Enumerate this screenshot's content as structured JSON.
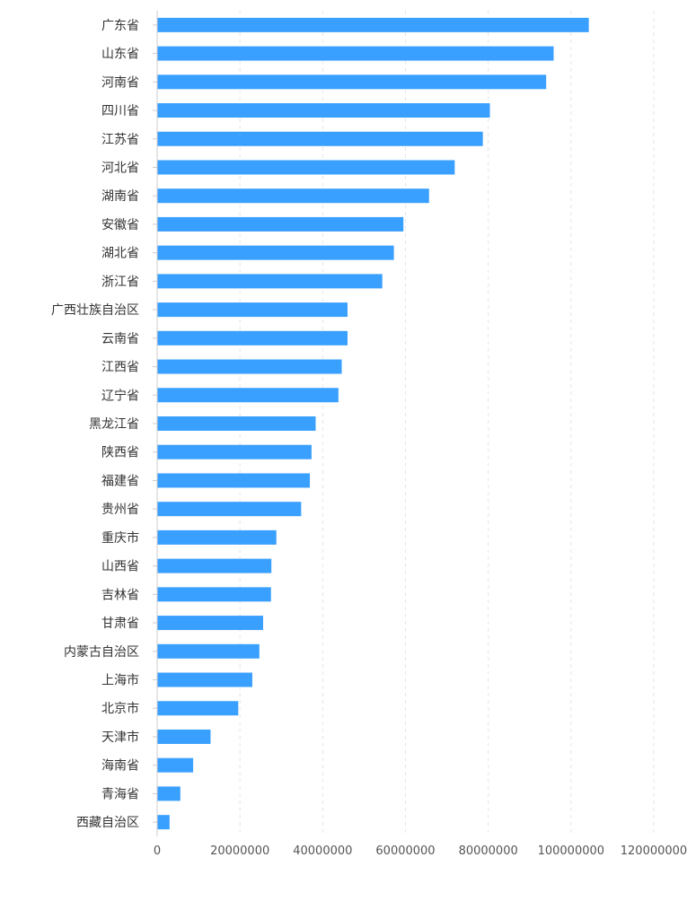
{
  "chart_data": {
    "type": "bar",
    "orientation": "horizontal",
    "title": "",
    "xlabel": "",
    "ylabel": "",
    "xlim": [
      0,
      120000000
    ],
    "x_ticks": [
      0,
      20000000,
      40000000,
      60000000,
      80000000,
      100000000,
      120000000
    ],
    "x_tick_labels": [
      "0",
      "20000000",
      "40000000",
      "60000000",
      "80000000",
      "100000000",
      "120000000"
    ],
    "grid": "vertical dashed",
    "legend": "none",
    "bar_color": "#3aa0ff",
    "categories": [
      "广东省",
      "山东省",
      "河南省",
      "四川省",
      "江苏省",
      "河北省",
      "湖南省",
      "安徽省",
      "湖北省",
      "浙江省",
      "广西壮族自治区",
      "云南省",
      "江西省",
      "辽宁省",
      "黑龙江省",
      "陕西省",
      "福建省",
      "贵州省",
      "重庆市",
      "山西省",
      "吉林省",
      "甘肃省",
      "内蒙古自治区",
      "上海市",
      "北京市",
      "天津市",
      "海南省",
      "青海省",
      "西藏自治区"
    ],
    "values": [
      104300000,
      95800000,
      94000000,
      80400000,
      78700000,
      71900000,
      65700000,
      59500000,
      57200000,
      54400000,
      46000000,
      46000000,
      44600000,
      43800000,
      38300000,
      37300000,
      36900000,
      34800000,
      28800000,
      27600000,
      27500000,
      25600000,
      24700000,
      23000000,
      19600000,
      12900000,
      8700000,
      5600000,
      3000000
    ]
  }
}
